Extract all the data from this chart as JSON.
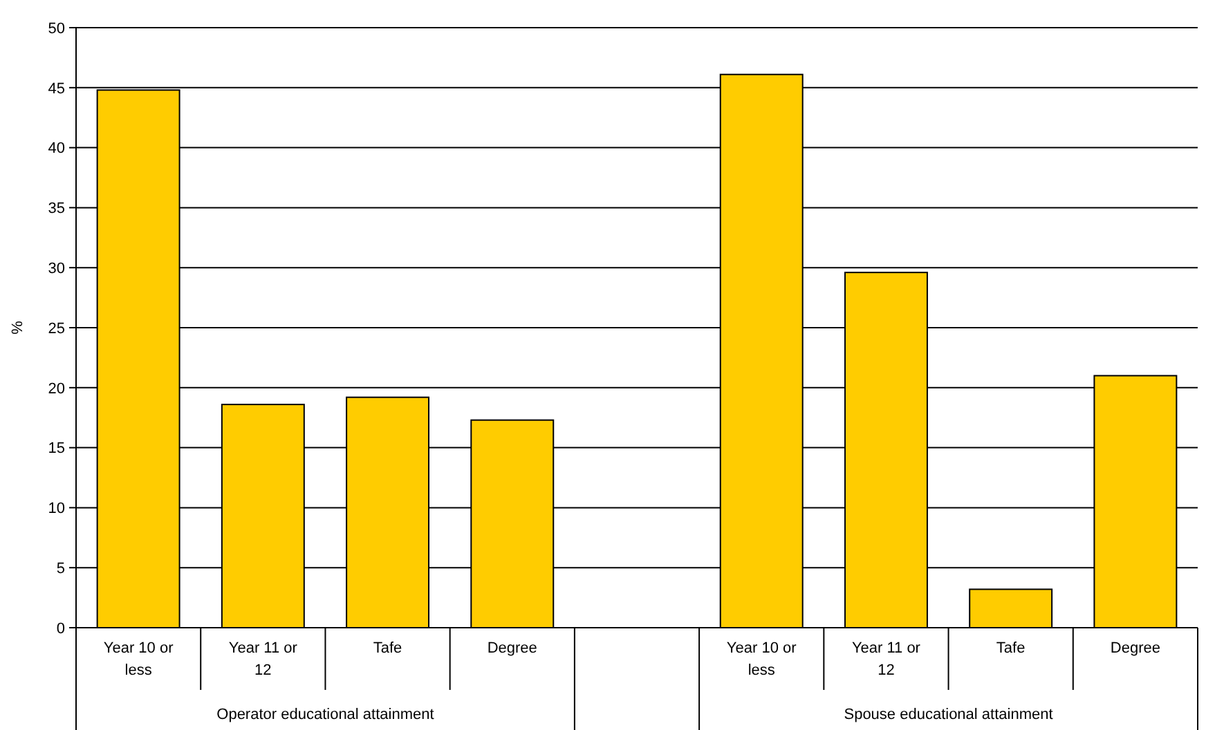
{
  "chart_data": {
    "type": "bar",
    "ylabel": "%",
    "categories": [
      "Year 10 or less",
      "Year 11 or 12",
      "Tafe",
      "Degree",
      null,
      "Year 10 or less",
      "Year 11 or 12",
      "Tafe",
      "Degree"
    ],
    "values": [
      44.8,
      18.6,
      19.2,
      17.3,
      null,
      46.1,
      29.6,
      3.2,
      21.0
    ],
    "color": "#ffcc00",
    "ylim": [
      0,
      50
    ],
    "yticks": [
      0,
      5,
      10,
      15,
      20,
      25,
      30,
      35,
      40,
      45,
      50
    ],
    "grid": "y",
    "annotations": [
      "Operator educational attainment",
      "Spouse educational attainment"
    ]
  }
}
